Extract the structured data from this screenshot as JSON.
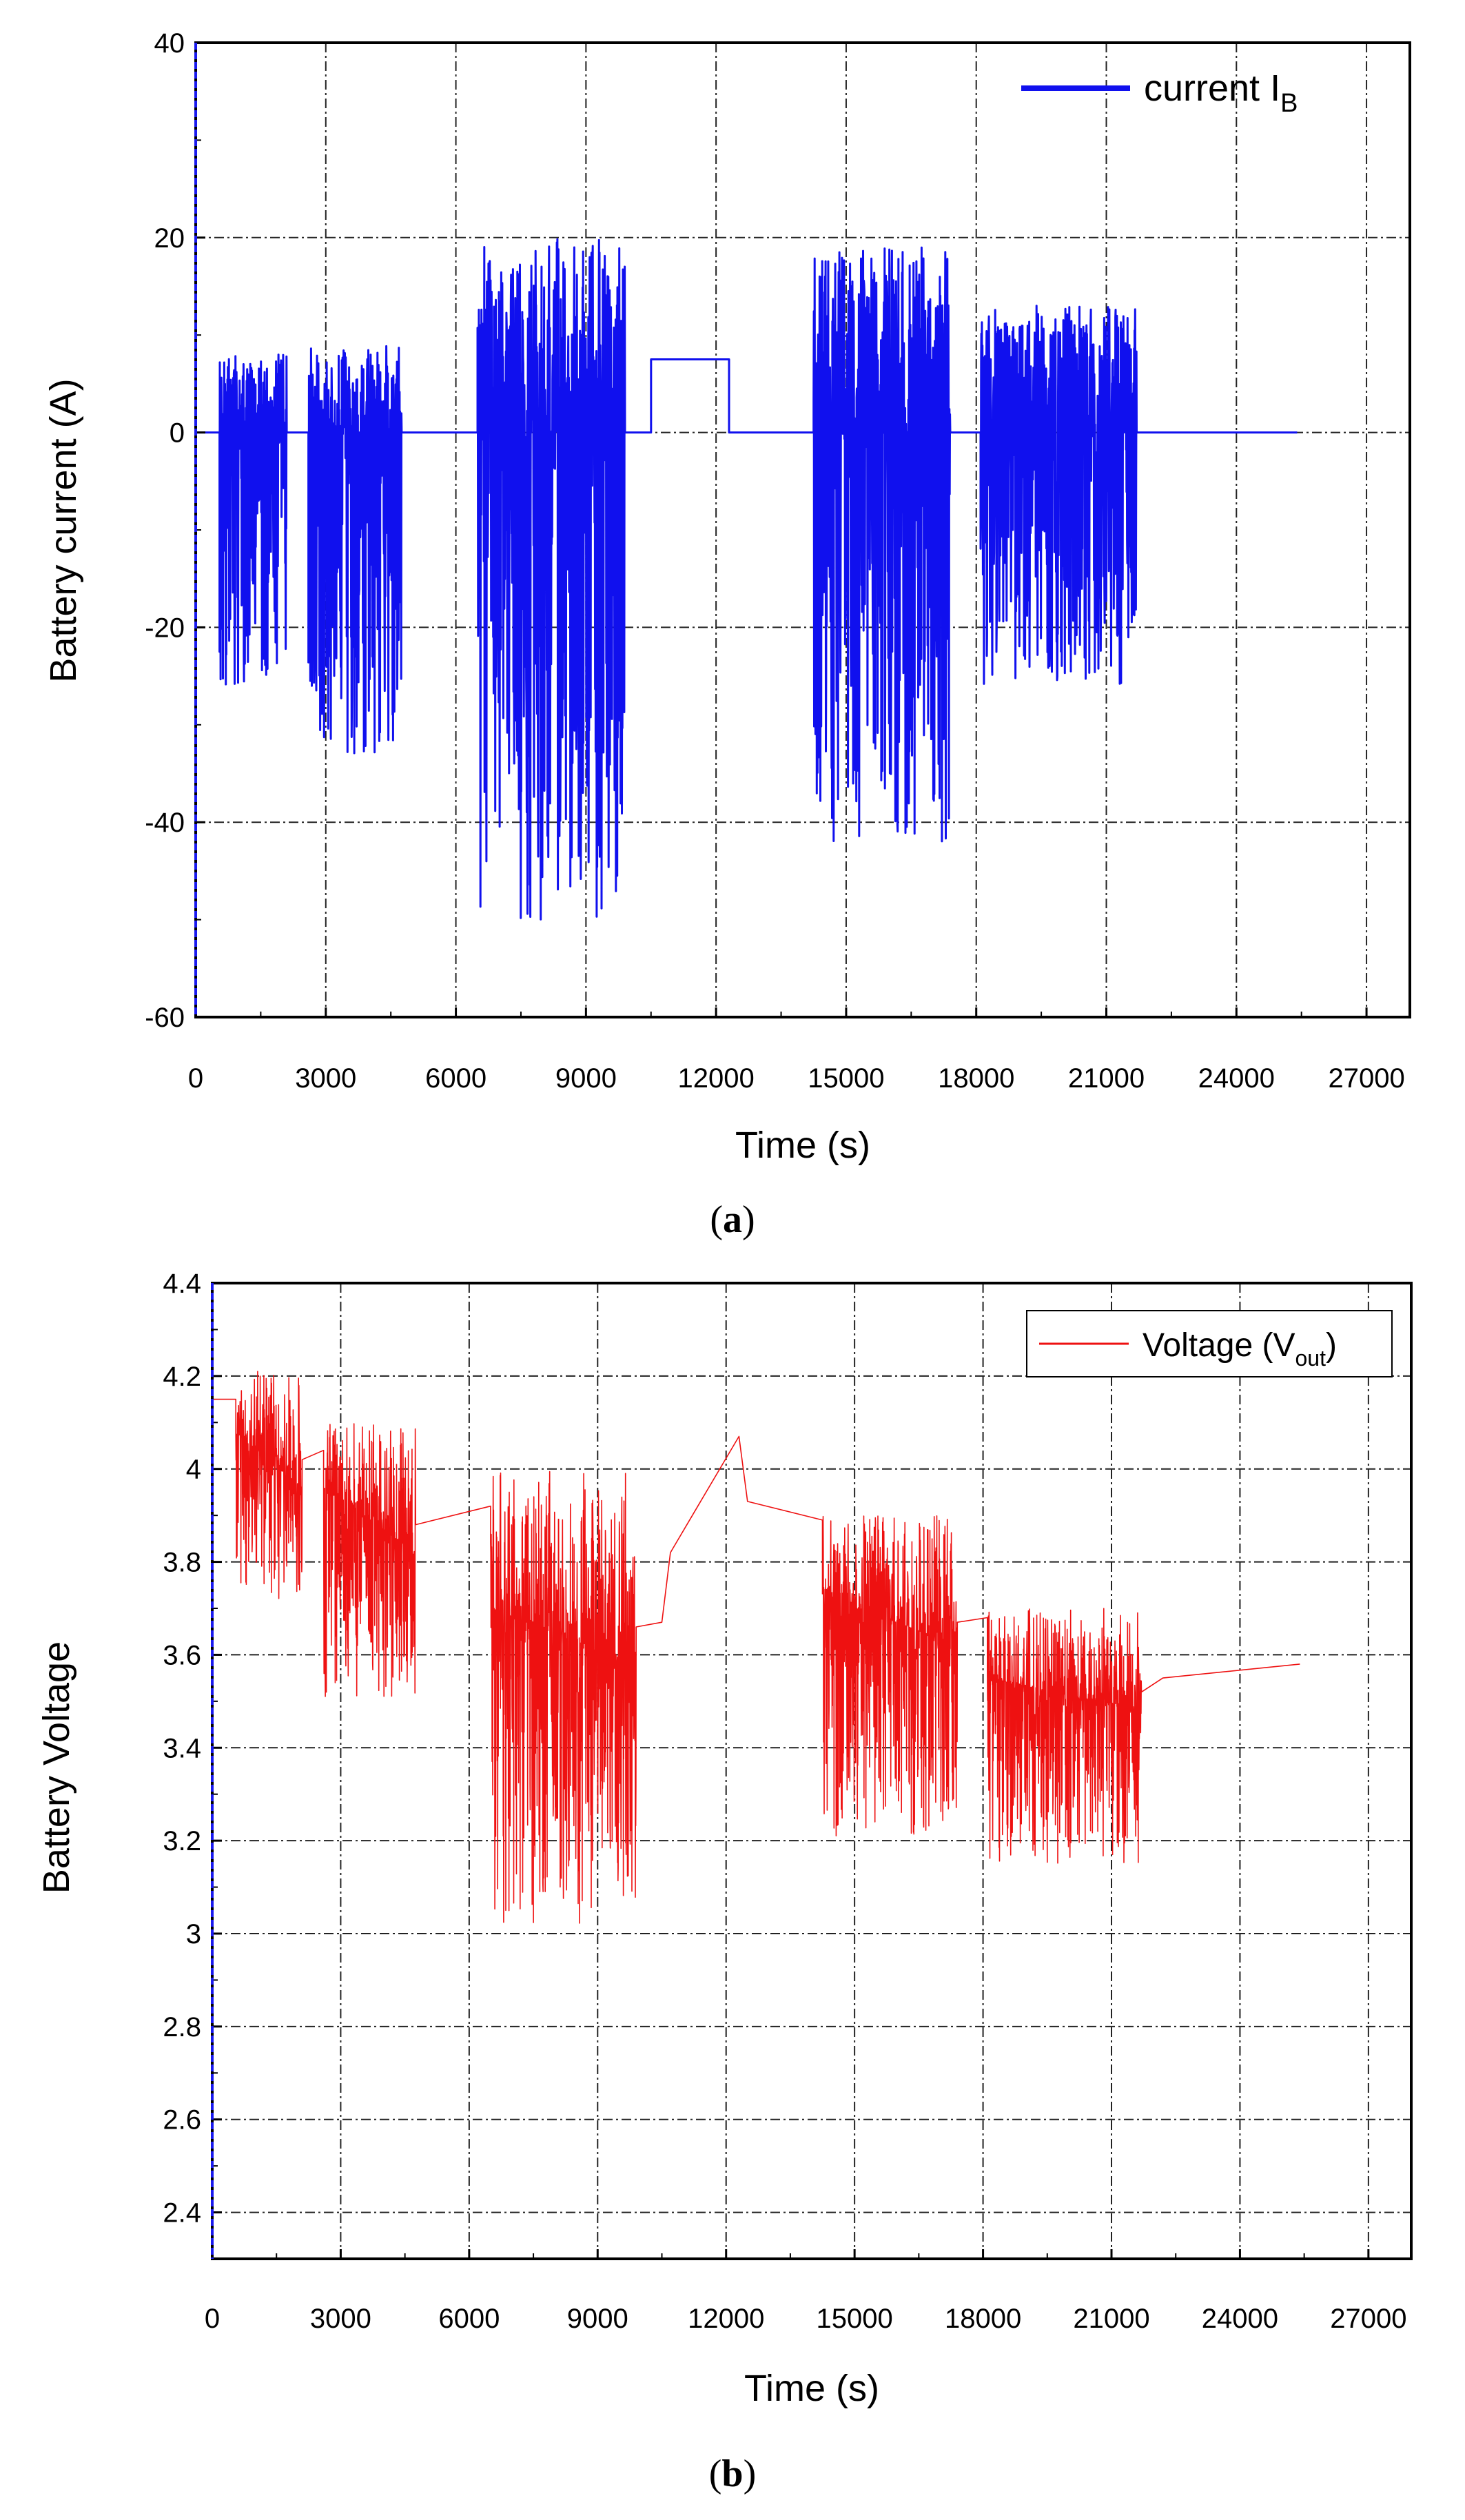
{
  "chart_data": [
    {
      "type": "line",
      "panel_label": "a",
      "xlabel": "Time (s)",
      "ylabel": "Battery current (A)",
      "xlim": [
        0,
        28000
      ],
      "ylim": [
        -60,
        40
      ],
      "x_ticks": [
        0,
        3000,
        6000,
        9000,
        12000,
        15000,
        18000,
        21000,
        24000,
        27000
      ],
      "y_ticks": [
        -60,
        -40,
        -20,
        0,
        20,
        40
      ],
      "x_tick_labels": [
        "0",
        "3000",
        "6000",
        "9000",
        "12000",
        "15000",
        "18000",
        "21000",
        "24000",
        "27000"
      ],
      "y_tick_labels": [
        "-60",
        "-40",
        "-20",
        "0",
        "20",
        "40"
      ],
      "grid": true,
      "legend_position": "top-right",
      "series": [
        {
          "name": "current I_B",
          "legend_main": "current I",
          "legend_sub": "B",
          "color": "#1010ee",
          "idle_level": 0,
          "bursts": [
            {
              "start": 550,
              "end": 2100,
              "min": -26,
              "max": 8
            },
            {
              "start": 2600,
              "end": 4750,
              "min": -33,
              "max": 9
            },
            {
              "start": 6500,
              "end": 9900,
              "min": -50,
              "max": 20
            },
            {
              "start": 14250,
              "end": 17400,
              "min": -42,
              "max": 19
            },
            {
              "start": 18100,
              "end": 21700,
              "min": -26,
              "max": 13
            }
          ],
          "charge_segment": {
            "start": 10500,
            "end": 12300,
            "value": 7.5
          },
          "end_time": 25400
        }
      ]
    },
    {
      "type": "line",
      "panel_label": "b",
      "xlabel": "Time (s)",
      "ylabel": "Battery Voltage",
      "xlim": [
        0,
        28000
      ],
      "ylim": [
        2.3,
        4.4
      ],
      "x_ticks": [
        0,
        3000,
        6000,
        9000,
        12000,
        15000,
        18000,
        21000,
        24000,
        27000
      ],
      "y_ticks": [
        2.4,
        2.6,
        2.8,
        3,
        3.2,
        3.4,
        3.6,
        3.8,
        4,
        4.2,
        4.4
      ],
      "x_tick_labels": [
        "0",
        "3000",
        "6000",
        "9000",
        "12000",
        "15000",
        "18000",
        "21000",
        "24000",
        "27000"
      ],
      "y_tick_labels": [
        "2.4",
        "2.6",
        "2.8",
        "3",
        "3.2",
        "3.4",
        "3.6",
        "3.8",
        "4",
        "4.2",
        "4.4"
      ],
      "grid": true,
      "legend_position": "top-right",
      "series": [
        {
          "name": "Voltage (V_out)",
          "legend_main": "Voltage (V",
          "legend_sub": "out",
          "legend_tail": ")",
          "color": "#ee1111",
          "rest_points": [
            [
              0,
              4.15
            ],
            [
              550,
              4.15
            ],
            [
              2100,
              4.02
            ],
            [
              2600,
              4.04
            ],
            [
              4750,
              3.88
            ],
            [
              6500,
              3.92
            ],
            [
              9900,
              3.66
            ],
            [
              10500,
              3.67
            ],
            [
              10700,
              3.82
            ],
            [
              12300,
              4.07
            ],
            [
              12500,
              3.93
            ],
            [
              14250,
              3.89
            ],
            [
              17400,
              3.67
            ],
            [
              18100,
              3.68
            ],
            [
              21700,
              3.52
            ],
            [
              22200,
              3.55
            ],
            [
              25400,
              3.58
            ]
          ],
          "bursts": [
            {
              "start": 550,
              "end": 2100,
              "base_start": 4.08,
              "base_end": 3.96,
              "min": 3.72,
              "max": 4.21
            },
            {
              "start": 2600,
              "end": 4750,
              "base_start": 3.96,
              "base_end": 3.82,
              "min": 3.51,
              "max": 4.1
            },
            {
              "start": 6500,
              "end": 9900,
              "base_start": 3.7,
              "base_end": 3.58,
              "min": 3.02,
              "max": 4.0
            },
            {
              "start": 14250,
              "end": 17400,
              "base_start": 3.73,
              "base_end": 3.62,
              "min": 3.21,
              "max": 3.9
            },
            {
              "start": 18100,
              "end": 21700,
              "base_start": 3.55,
              "base_end": 3.48,
              "min": 3.15,
              "max": 3.7
            }
          ]
        }
      ]
    }
  ]
}
